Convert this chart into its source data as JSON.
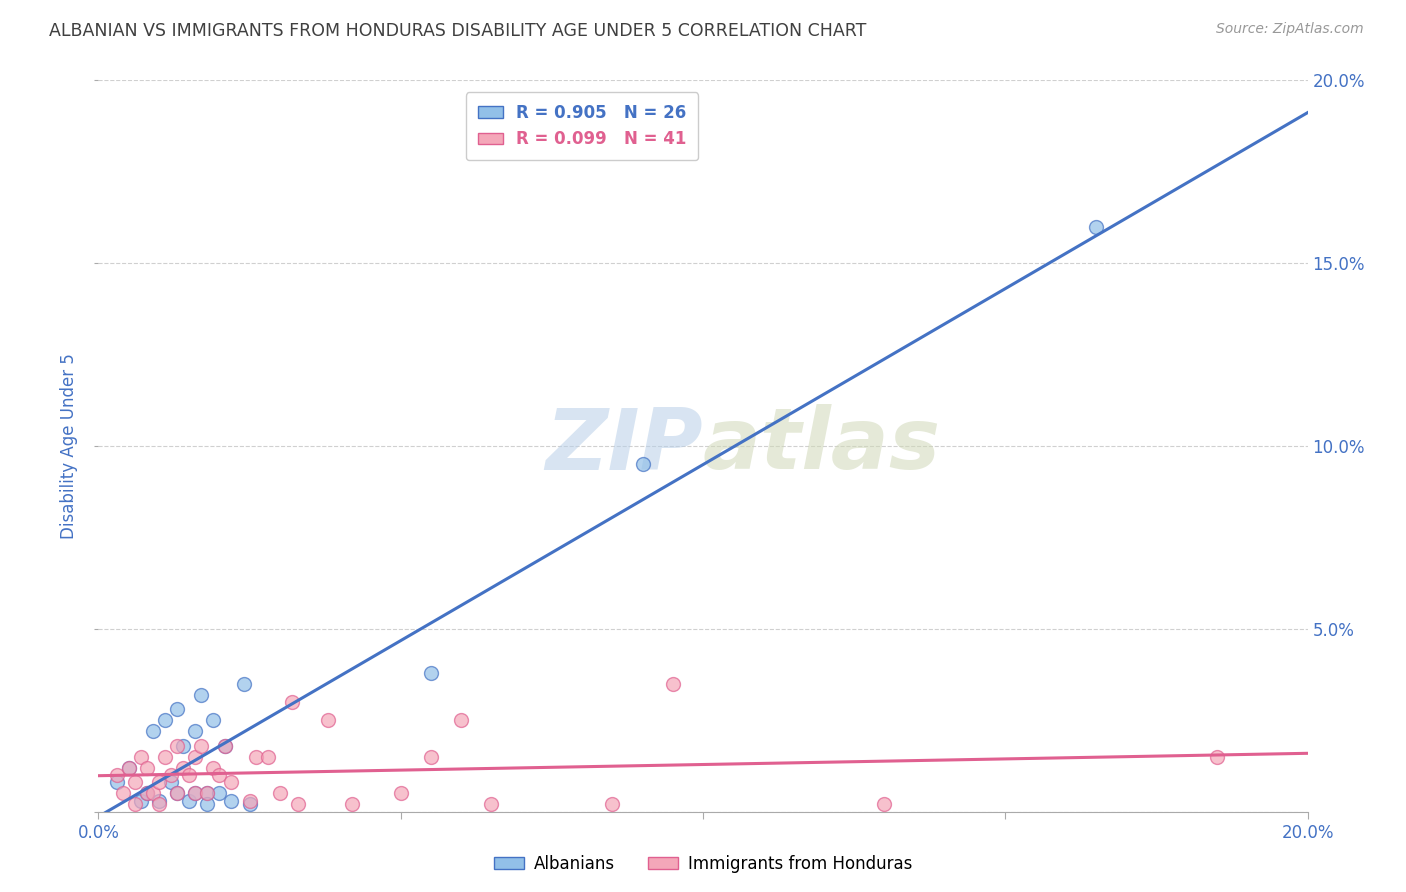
{
  "title": "ALBANIAN VS IMMIGRANTS FROM HONDURAS DISABILITY AGE UNDER 5 CORRELATION CHART",
  "source": "Source: ZipAtlas.com",
  "ylabel": "Disability Age Under 5",
  "xlim": [
    0.0,
    0.2
  ],
  "ylim": [
    0.0,
    0.2
  ],
  "xticks": [
    0.0,
    0.05,
    0.1,
    0.15,
    0.2
  ],
  "yticks": [
    0.0,
    0.05,
    0.1,
    0.15,
    0.2
  ],
  "xticklabels_bottom": [
    "0.0%",
    "",
    "",
    "",
    "20.0%"
  ],
  "yticklabels_right": [
    "",
    "5.0%",
    "10.0%",
    "15.0%",
    "20.0%"
  ],
  "blue_color": "#92c0e8",
  "pink_color": "#f4a7b9",
  "blue_line_color": "#4472c4",
  "pink_line_color": "#e06090",
  "legend_R_blue": "R = 0.905",
  "legend_N_blue": "N = 26",
  "legend_R_pink": "R = 0.099",
  "legend_N_pink": "N = 41",
  "legend_label_blue": "Albanians",
  "legend_label_pink": "Immigrants from Honduras",
  "watermark_zip": "ZIP",
  "watermark_atlas": "atlas",
  "blue_x": [
    0.003,
    0.005,
    0.007,
    0.008,
    0.009,
    0.01,
    0.011,
    0.012,
    0.013,
    0.013,
    0.014,
    0.015,
    0.016,
    0.016,
    0.017,
    0.018,
    0.018,
    0.019,
    0.02,
    0.021,
    0.022,
    0.024,
    0.025,
    0.055,
    0.09,
    0.165
  ],
  "blue_y": [
    0.008,
    0.012,
    0.003,
    0.005,
    0.022,
    0.003,
    0.025,
    0.008,
    0.005,
    0.028,
    0.018,
    0.003,
    0.005,
    0.022,
    0.032,
    0.005,
    0.002,
    0.025,
    0.005,
    0.018,
    0.003,
    0.035,
    0.002,
    0.038,
    0.095,
    0.16
  ],
  "pink_x": [
    0.003,
    0.004,
    0.005,
    0.006,
    0.006,
    0.007,
    0.008,
    0.008,
    0.009,
    0.01,
    0.01,
    0.011,
    0.012,
    0.013,
    0.013,
    0.014,
    0.015,
    0.016,
    0.016,
    0.017,
    0.018,
    0.019,
    0.02,
    0.021,
    0.022,
    0.025,
    0.026,
    0.028,
    0.03,
    0.032,
    0.033,
    0.038,
    0.042,
    0.05,
    0.055,
    0.06,
    0.065,
    0.085,
    0.095,
    0.13,
    0.185
  ],
  "pink_y": [
    0.01,
    0.005,
    0.012,
    0.008,
    0.002,
    0.015,
    0.005,
    0.012,
    0.005,
    0.008,
    0.002,
    0.015,
    0.01,
    0.018,
    0.005,
    0.012,
    0.01,
    0.015,
    0.005,
    0.018,
    0.005,
    0.012,
    0.01,
    0.018,
    0.008,
    0.003,
    0.015,
    0.015,
    0.005,
    0.03,
    0.002,
    0.025,
    0.002,
    0.005,
    0.015,
    0.025,
    0.002,
    0.002,
    0.035,
    0.002,
    0.015
  ],
  "background_color": "#ffffff",
  "grid_color": "#d0d0d0",
  "axis_label_color": "#4472c4",
  "tick_label_color": "#4472c4",
  "title_color": "#404040",
  "marker_size": 100
}
